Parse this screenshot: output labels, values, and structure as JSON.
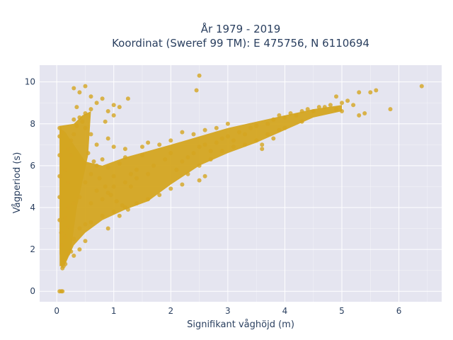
{
  "chart_data": {
    "type": "scatter",
    "title_lines": [
      "År 1979 - 2019",
      "Koordinat (Sweref 99 TM): E 475756, N 6110694"
    ],
    "xlabel": "Signifikant våghöjd (m)",
    "ylabel": "Vågperiod (s)",
    "xlim": [
      -0.3,
      6.75
    ],
    "ylim": [
      -0.5,
      10.8
    ],
    "xticks": [
      0,
      1,
      2,
      3,
      4,
      5,
      6
    ],
    "yticks": [
      0,
      2,
      4,
      6,
      8,
      10
    ],
    "grid": true,
    "marker_color": "#D4A520",
    "plot_bg": "#E5E5F0",
    "grid_color": "#FFFFFF",
    "series": [
      {
        "points": [
          [
            0.05,
            0
          ],
          [
            0.1,
            0
          ],
          [
            0.08,
            0
          ],
          [
            0.1,
            1.1
          ],
          [
            0.1,
            1.5
          ],
          [
            0.15,
            1.3
          ],
          [
            0.2,
            1.8
          ],
          [
            0.1,
            2.2
          ],
          [
            0.08,
            2.8
          ],
          [
            0.05,
            3.4
          ],
          [
            0.05,
            4.5
          ],
          [
            0.05,
            5.5
          ],
          [
            0.05,
            6.5
          ],
          [
            0.05,
            7.4
          ],
          [
            0.05,
            7.8
          ],
          [
            0.1,
            7.6
          ],
          [
            0.15,
            3.5
          ],
          [
            0.2,
            5.2
          ],
          [
            0.25,
            6.5
          ],
          [
            0.3,
            7.5
          ],
          [
            0.35,
            7.9
          ],
          [
            0.3,
            8.2
          ],
          [
            0.35,
            8.8
          ],
          [
            0.4,
            8.3
          ],
          [
            0.5,
            8.5
          ],
          [
            0.6,
            8.7
          ],
          [
            0.3,
            9.7
          ],
          [
            0.4,
            9.5
          ],
          [
            0.5,
            9.8
          ],
          [
            0.6,
            9.3
          ],
          [
            0.7,
            9.0
          ],
          [
            0.8,
            9.2
          ],
          [
            0.9,
            8.6
          ],
          [
            1.0,
            8.4
          ],
          [
            1.0,
            8.9
          ],
          [
            1.1,
            8.8
          ],
          [
            1.25,
            9.2
          ],
          [
            0.85,
            8.1
          ],
          [
            0.3,
            2.5
          ],
          [
            0.4,
            3.0
          ],
          [
            0.5,
            3.2
          ],
          [
            0.6,
            3.3
          ],
          [
            0.8,
            3.6
          ],
          [
            1.0,
            3.8
          ],
          [
            1.2,
            4.0
          ],
          [
            1.4,
            4.2
          ],
          [
            1.6,
            4.4
          ],
          [
            1.8,
            4.6
          ],
          [
            2.0,
            4.9
          ],
          [
            2.2,
            5.1
          ],
          [
            0.4,
            4.5
          ],
          [
            0.5,
            5.2
          ],
          [
            0.6,
            5.6
          ],
          [
            0.7,
            6.0
          ],
          [
            0.8,
            6.3
          ],
          [
            0.9,
            5.9
          ],
          [
            1.0,
            5.5
          ],
          [
            1.1,
            6.1
          ],
          [
            1.2,
            6.4
          ],
          [
            1.3,
            5.0
          ],
          [
            1.4,
            5.8
          ],
          [
            1.5,
            6.5
          ],
          [
            0.6,
            4.2
          ],
          [
            0.7,
            4.8
          ],
          [
            0.8,
            4.4
          ],
          [
            0.9,
            4.7
          ],
          [
            1.0,
            5.0
          ],
          [
            1.2,
            5.2
          ],
          [
            1.4,
            5.4
          ],
          [
            1.6,
            5.6
          ],
          [
            1.7,
            6.0
          ],
          [
            1.9,
            6.3
          ],
          [
            2.0,
            6.6
          ],
          [
            2.1,
            5.8
          ],
          [
            2.2,
            6.2
          ],
          [
            2.3,
            6.4
          ],
          [
            2.4,
            6.6
          ],
          [
            2.5,
            6.9
          ],
          [
            2.6,
            7.0
          ],
          [
            2.7,
            6.7
          ],
          [
            2.8,
            7.1
          ],
          [
            2.9,
            7.3
          ],
          [
            3.0,
            7.4
          ],
          [
            3.1,
            7.2
          ],
          [
            3.2,
            7.6
          ],
          [
            3.3,
            7.5
          ],
          [
            2.3,
            5.6
          ],
          [
            2.5,
            6.0
          ],
          [
            2.7,
            6.3
          ],
          [
            2.9,
            6.7
          ],
          [
            3.1,
            6.9
          ],
          [
            3.3,
            7.0
          ],
          [
            3.5,
            7.2
          ],
          [
            3.7,
            7.5
          ],
          [
            3.9,
            7.7
          ],
          [
            4.0,
            7.8
          ],
          [
            3.6,
            6.8
          ],
          [
            3.8,
            7.3
          ],
          [
            3.4,
            7.8
          ],
          [
            3.5,
            7.9
          ],
          [
            3.7,
            8.0
          ],
          [
            3.8,
            8.2
          ],
          [
            3.9,
            8.4
          ],
          [
            4.0,
            8.3
          ],
          [
            4.1,
            8.5
          ],
          [
            4.2,
            8.4
          ],
          [
            4.3,
            8.6
          ],
          [
            4.4,
            8.7
          ],
          [
            4.5,
            8.6
          ],
          [
            4.6,
            8.8
          ],
          [
            4.7,
            8.8
          ],
          [
            4.8,
            8.9
          ],
          [
            4.9,
            8.7
          ],
          [
            5.0,
            9.0
          ],
          [
            5.1,
            9.1
          ],
          [
            5.2,
            8.9
          ],
          [
            5.0,
            8.6
          ],
          [
            4.9,
            9.3
          ],
          [
            5.3,
            9.5
          ],
          [
            5.5,
            9.5
          ],
          [
            5.6,
            9.6
          ],
          [
            5.4,
            8.5
          ],
          [
            5.3,
            8.4
          ],
          [
            5.85,
            8.7
          ],
          [
            6.4,
            9.8
          ],
          [
            2.45,
            9.6
          ],
          [
            2.5,
            10.3
          ],
          [
            1.3,
            5.6
          ],
          [
            1.1,
            3.6
          ],
          [
            0.9,
            3.0
          ],
          [
            2.5,
            5.3
          ],
          [
            2.6,
            5.5
          ],
          [
            3.6,
            7.0
          ],
          [
            4.3,
            8.1
          ],
          [
            0.2,
            6.8
          ],
          [
            0.25,
            7.2
          ],
          [
            0.15,
            5.8
          ],
          [
            0.2,
            4.0
          ],
          [
            0.3,
            4.2
          ],
          [
            0.15,
            2.6
          ],
          [
            0.2,
            3.1
          ],
          [
            0.25,
            1.9
          ],
          [
            0.12,
            1.2
          ],
          [
            0.3,
            1.7
          ],
          [
            0.4,
            2.0
          ],
          [
            0.5,
            2.4
          ],
          [
            1.8,
            7.0
          ],
          [
            2.0,
            7.2
          ],
          [
            2.2,
            7.6
          ],
          [
            2.4,
            7.5
          ],
          [
            2.6,
            7.7
          ],
          [
            2.8,
            7.8
          ],
          [
            3.0,
            8.0
          ],
          [
            1.5,
            6.9
          ],
          [
            1.6,
            7.1
          ],
          [
            1.2,
            6.8
          ],
          [
            0.9,
            7.3
          ],
          [
            1.0,
            6.9
          ],
          [
            0.7,
            7.0
          ],
          [
            0.6,
            7.5
          ],
          [
            0.5,
            7.8
          ],
          [
            0.45,
            8.1
          ],
          [
            0.55,
            6.6
          ],
          [
            0.65,
            6.2
          ],
          [
            0.75,
            5.4
          ],
          [
            0.85,
            5.0
          ],
          [
            0.95,
            4.6
          ],
          [
            1.05,
            4.3
          ],
          [
            1.15,
            4.1
          ],
          [
            1.25,
            3.9
          ]
        ]
      }
    ]
  }
}
